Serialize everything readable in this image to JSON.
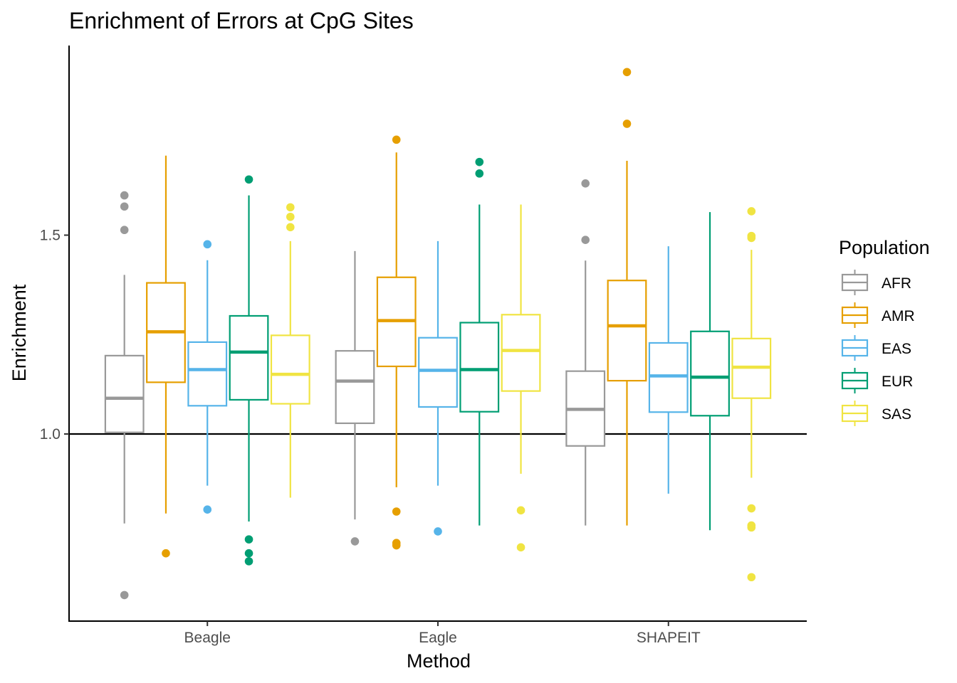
{
  "chart_data": {
    "type": "boxplot",
    "title": "Enrichment of Errors at CpG Sites",
    "xlabel": "Method",
    "ylabel": "Enrichment",
    "categories": [
      "Beagle",
      "Eagle",
      "SHAPEIT"
    ],
    "y_ticks": [
      "1.0",
      "1.5"
    ],
    "y_tick_values": [
      1.0,
      1.5
    ],
    "ylim": [
      0.57,
      2.02
    ],
    "reference_line": 1.0,
    "grid": false,
    "legend": {
      "title": "Population",
      "position": "right"
    },
    "series": [
      {
        "name": "AFR",
        "color": "#999999",
        "boxes": [
          {
            "lower_whisker": 0.775,
            "q1": 1.004,
            "median": 1.09,
            "q3": 1.197,
            "upper_whisker": 1.4,
            "outliers": [
              0.595,
              1.513,
              1.572,
              1.6
            ]
          },
          {
            "lower_whisker": 0.785,
            "q1": 1.027,
            "median": 1.133,
            "q3": 1.209,
            "upper_whisker": 1.46,
            "outliers": [
              0.73
            ]
          },
          {
            "lower_whisker": 0.77,
            "q1": 0.97,
            "median": 1.062,
            "q3": 1.158,
            "upper_whisker": 1.436,
            "outliers": [
              1.488,
              1.63
            ]
          }
        ]
      },
      {
        "name": "AMR",
        "color": "#E69F00",
        "boxes": [
          {
            "lower_whisker": 0.8,
            "q1": 1.13,
            "median": 1.257,
            "q3": 1.38,
            "upper_whisker": 1.7,
            "outliers": [
              0.7
            ]
          },
          {
            "lower_whisker": 0.866,
            "q1": 1.17,
            "median": 1.285,
            "q3": 1.394,
            "upper_whisker": 1.708,
            "outliers": [
              0.72,
              0.726,
              0.805,
              1.74
            ]
          },
          {
            "lower_whisker": 0.77,
            "q1": 1.134,
            "median": 1.272,
            "q3": 1.386,
            "upper_whisker": 1.687,
            "outliers": [
              1.78,
              1.91
            ]
          }
        ]
      },
      {
        "name": "EAS",
        "color": "#56B4E9",
        "boxes": [
          {
            "lower_whisker": 0.87,
            "q1": 1.071,
            "median": 1.162,
            "q3": 1.231,
            "upper_whisker": 1.437,
            "outliers": [
              0.81,
              1.477
            ]
          },
          {
            "lower_whisker": 0.87,
            "q1": 1.068,
            "median": 1.16,
            "q3": 1.242,
            "upper_whisker": 1.485,
            "outliers": [
              0.755
            ]
          },
          {
            "lower_whisker": 0.85,
            "q1": 1.055,
            "median": 1.146,
            "q3": 1.229,
            "upper_whisker": 1.472,
            "outliers": []
          }
        ]
      },
      {
        "name": "EUR",
        "color": "#009E73",
        "boxes": [
          {
            "lower_whisker": 0.78,
            "q1": 1.086,
            "median": 1.206,
            "q3": 1.297,
            "upper_whisker": 1.6,
            "outliers": [
              0.68,
              0.7,
              0.735,
              1.64
            ]
          },
          {
            "lower_whisker": 0.77,
            "q1": 1.056,
            "median": 1.162,
            "q3": 1.28,
            "upper_whisker": 1.577,
            "outliers": [
              1.655,
              1.684
            ]
          },
          {
            "lower_whisker": 0.758,
            "q1": 1.046,
            "median": 1.143,
            "q3": 1.258,
            "upper_whisker": 1.558,
            "outliers": []
          }
        ]
      },
      {
        "name": "SAS",
        "color": "#F0E442",
        "boxes": [
          {
            "lower_whisker": 0.84,
            "q1": 1.076,
            "median": 1.15,
            "q3": 1.248,
            "upper_whisker": 1.485,
            "outliers": [
              1.52,
              1.546,
              1.57
            ]
          },
          {
            "lower_whisker": 0.9,
            "q1": 1.108,
            "median": 1.21,
            "q3": 1.3,
            "upper_whisker": 1.577,
            "outliers": [
              0.715,
              0.808
            ]
          },
          {
            "lower_whisker": 0.89,
            "q1": 1.09,
            "median": 1.168,
            "q3": 1.24,
            "upper_whisker": 1.463,
            "outliers": [
              0.64,
              0.765,
              0.77,
              0.813,
              1.493,
              1.498,
              1.56
            ]
          }
        ]
      }
    ]
  }
}
